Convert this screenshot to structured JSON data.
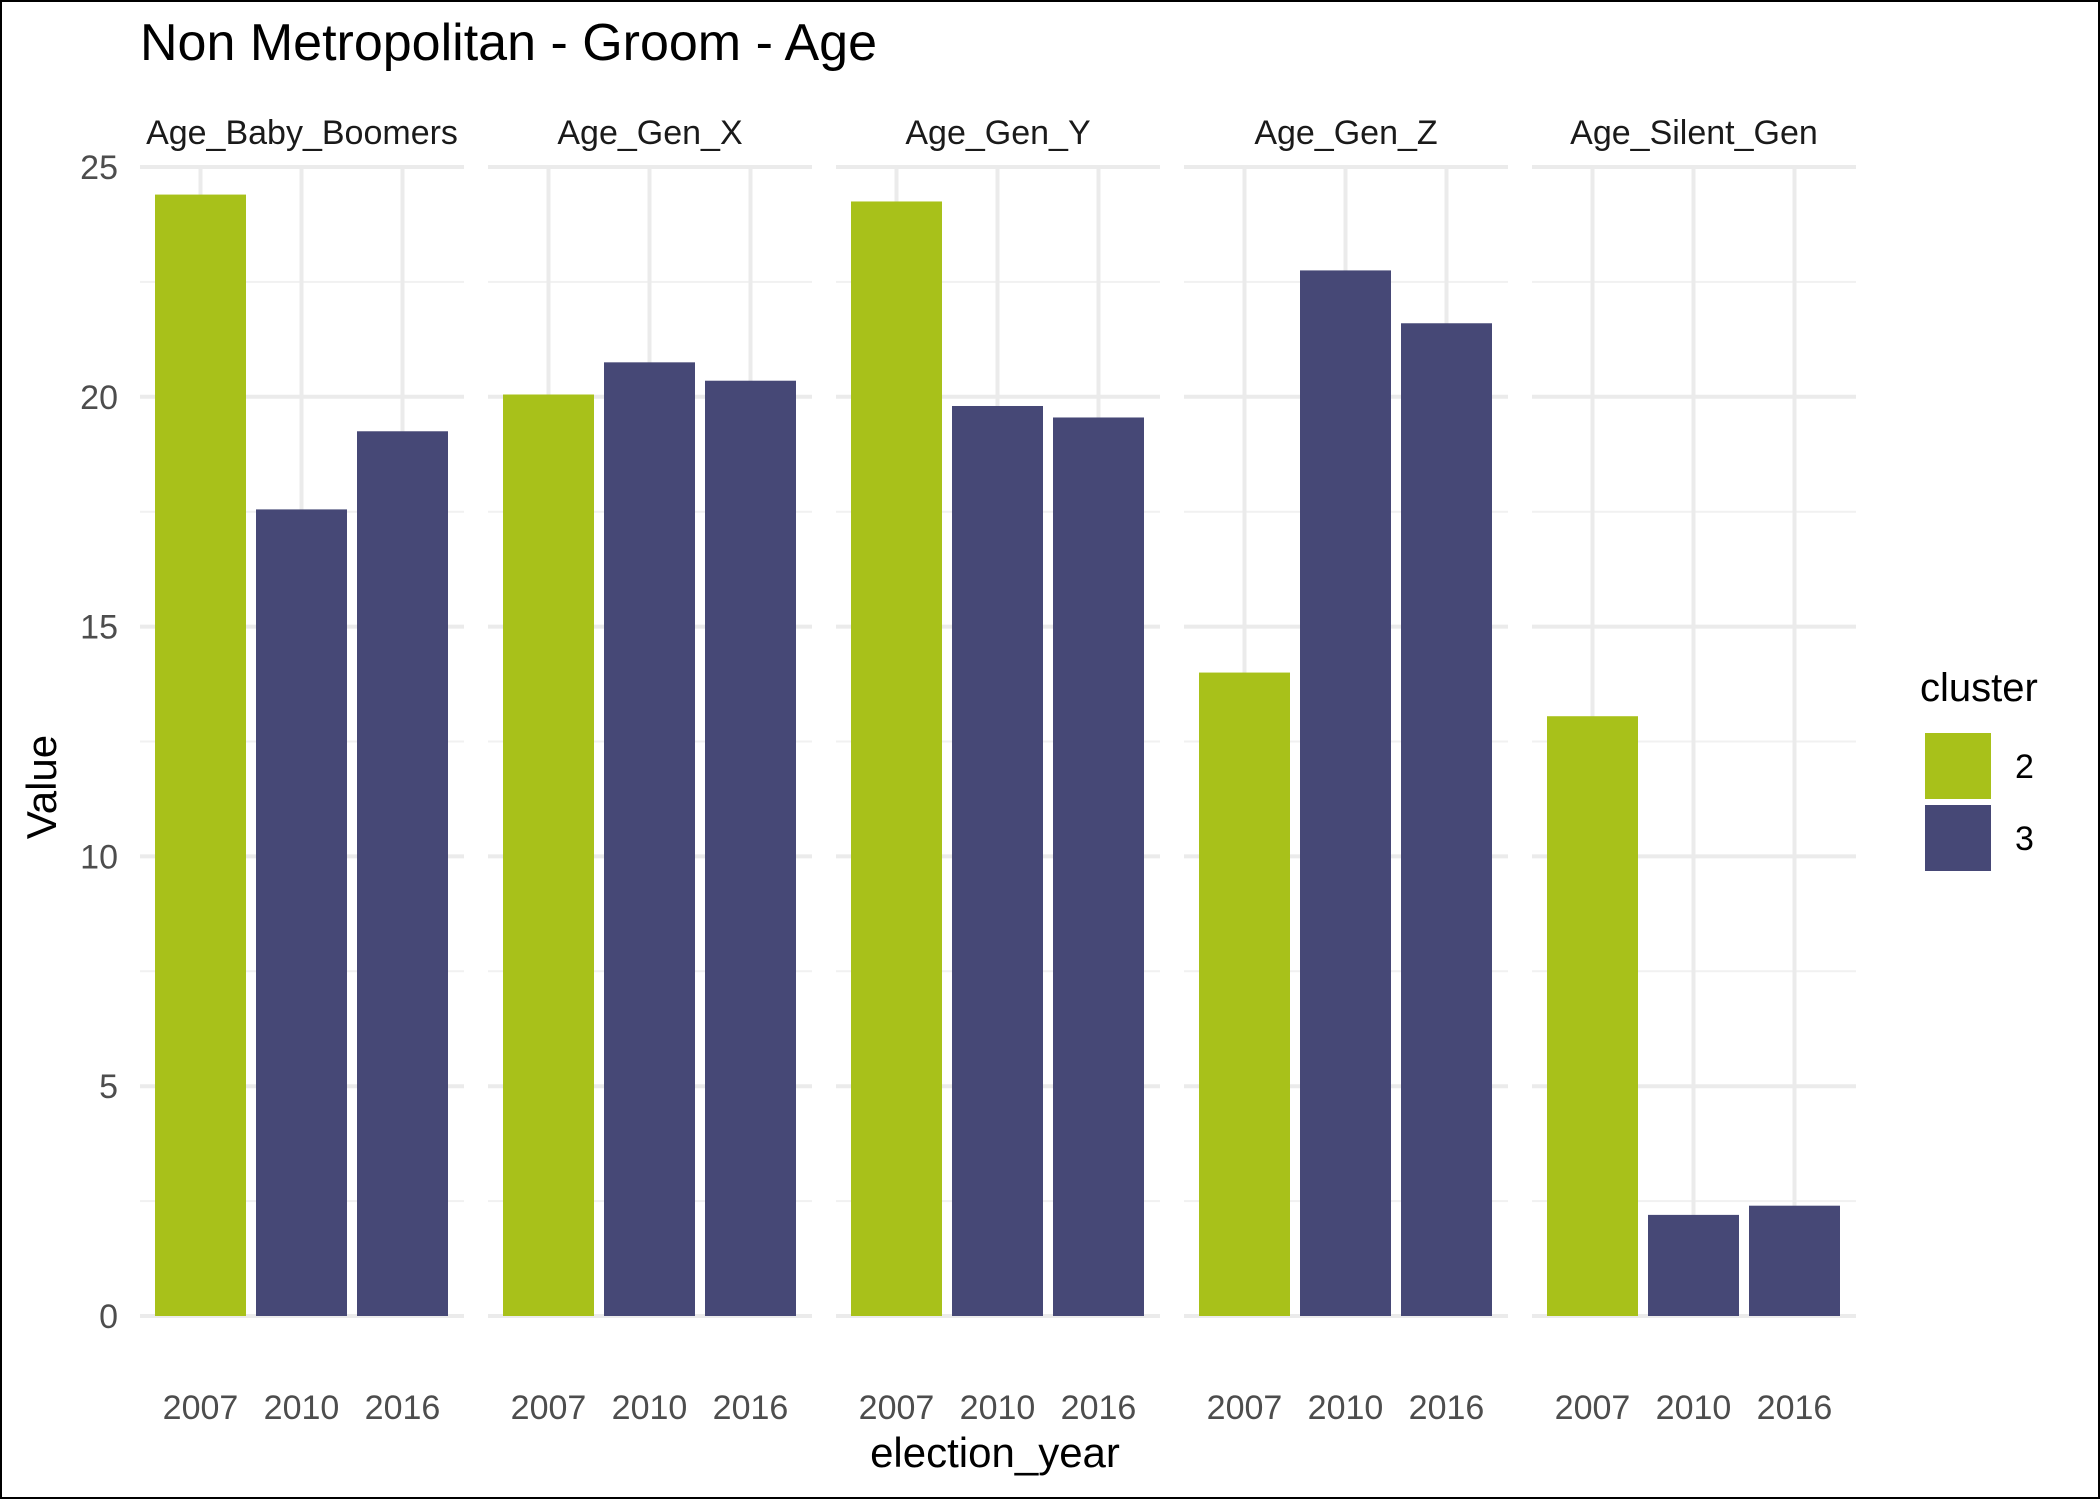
{
  "chart_data": {
    "type": "bar",
    "title": "Non Metropolitan - Groom - Age",
    "xlabel": "election_year",
    "ylabel": "Value",
    "ylim": [
      0,
      25
    ],
    "yticks": [
      0,
      5,
      10,
      15,
      20,
      25
    ],
    "grid": true,
    "legend": {
      "title": "cluster",
      "position": "right",
      "entries": [
        {
          "label": "2",
          "color": "#a8c11a"
        },
        {
          "label": "3",
          "color": "#464876"
        }
      ]
    },
    "categories": [
      "2007",
      "2010",
      "2016"
    ],
    "panels": [
      {
        "label": "Age_Baby_Boomers",
        "values": [
          24.4,
          17.55,
          19.25
        ],
        "clusters": [
          "2",
          "3",
          "3"
        ]
      },
      {
        "label": "Age_Gen_X",
        "values": [
          20.05,
          20.75,
          20.35
        ],
        "clusters": [
          "2",
          "3",
          "3"
        ]
      },
      {
        "label": "Age_Gen_Y",
        "values": [
          24.25,
          19.8,
          19.55
        ],
        "clusters": [
          "2",
          "3",
          "3"
        ]
      },
      {
        "label": "Age_Gen_Z",
        "values": [
          14.0,
          22.75,
          21.6
        ],
        "clusters": [
          "2",
          "3",
          "3"
        ]
      },
      {
        "label": "Age_Silent_Gen",
        "values": [
          13.05,
          2.2,
          2.4
        ],
        "clusters": [
          "2",
          "3",
          "3"
        ]
      }
    ]
  }
}
